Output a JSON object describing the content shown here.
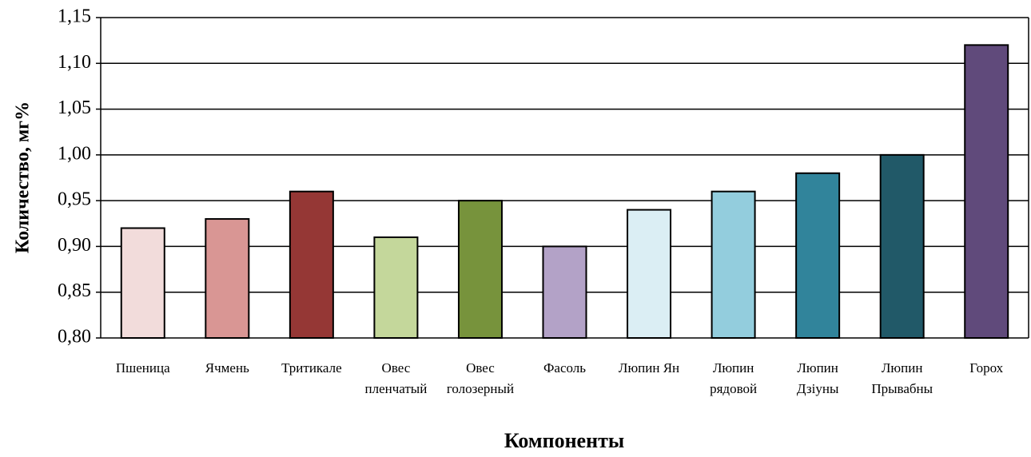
{
  "chart_data": {
    "type": "bar",
    "y_label": "Количество, мг%",
    "x_label": "Компоненты",
    "categories": [
      "Пшеница",
      "Ячмень",
      "Тритикале",
      "Овес\nпленчатый",
      "Овес\nголозерный",
      "Фасоль",
      "Люпин Ян",
      "Люпин\nрядовой",
      "Люпин\nДзіуны",
      "Люпин\nПрывабны",
      "Горох"
    ],
    "values": [
      0.92,
      0.93,
      0.96,
      0.91,
      0.95,
      0.9,
      0.94,
      0.96,
      0.98,
      1.0,
      1.12
    ],
    "colors": [
      "#f2dcdb",
      "#d99694",
      "#953735",
      "#c4d79b",
      "#77933c",
      "#b3a2c7",
      "#dbeef4",
      "#93cddd",
      "#31849b",
      "#215968",
      "#604a7b"
    ],
    "ylim": [
      0.8,
      1.15
    ],
    "yticks": [
      {
        "value": 0.8,
        "label": "0,80"
      },
      {
        "value": 0.85,
        "label": "0,85"
      },
      {
        "value": 0.9,
        "label": "0,90"
      },
      {
        "value": 0.95,
        "label": "0,95"
      },
      {
        "value": 1.0,
        "label": "1,00"
      },
      {
        "value": 1.05,
        "label": "1,05"
      },
      {
        "value": 1.1,
        "label": "1,10"
      },
      {
        "value": 1.15,
        "label": "1,15"
      }
    ],
    "grid": true
  }
}
